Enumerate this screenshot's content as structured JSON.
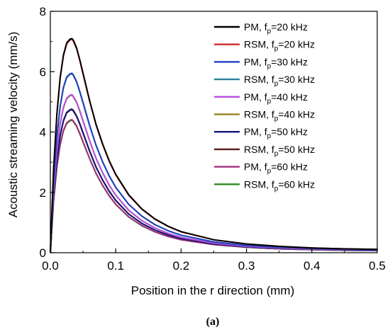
{
  "chart_data": {
    "type": "line",
    "xlabel": "Position in the r direction (mm)",
    "ylabel": "Acoustic streaming velocity (mm/s)",
    "caption": "(a)",
    "xlim": [
      0.0,
      0.5
    ],
    "ylim": [
      0,
      8
    ],
    "x_ticks": [
      "0.0",
      "0.1",
      "0.2",
      "0.3",
      "0.4",
      "0.5"
    ],
    "y_ticks": [
      "0",
      "2",
      "4",
      "6",
      "8"
    ],
    "grid": false,
    "legend_position": "top-right",
    "x": [
      0.0,
      0.005,
      0.01,
      0.015,
      0.02,
      0.025,
      0.03,
      0.033,
      0.035,
      0.04,
      0.045,
      0.05,
      0.06,
      0.07,
      0.08,
      0.09,
      0.1,
      0.12,
      0.14,
      0.16,
      0.18,
      0.2,
      0.25,
      0.3,
      0.35,
      0.4,
      0.45,
      0.5
    ],
    "series": [
      {
        "name": "PM, f",
        "sub": "p",
        "suffix": "=20 kHz",
        "color": "#000000",
        "values": [
          0.0,
          2.8,
          4.6,
          5.8,
          6.55,
          6.95,
          7.08,
          7.1,
          7.05,
          6.8,
          6.4,
          5.95,
          5.05,
          4.25,
          3.6,
          3.05,
          2.6,
          1.92,
          1.45,
          1.12,
          0.88,
          0.7,
          0.43,
          0.29,
          0.21,
          0.16,
          0.13,
          0.11
        ]
      },
      {
        "name": "RSM, f",
        "sub": "p",
        "suffix": "=20 kHz",
        "color": "#d62728",
        "values": [
          0.0,
          2.78,
          4.57,
          5.77,
          6.52,
          6.92,
          7.05,
          7.07,
          7.02,
          6.77,
          6.37,
          5.92,
          5.03,
          4.23,
          3.58,
          3.03,
          2.58,
          1.9,
          1.44,
          1.11,
          0.87,
          0.69,
          0.43,
          0.29,
          0.21,
          0.16,
          0.13,
          0.11
        ]
      },
      {
        "name": "PM, f",
        "sub": "p",
        "suffix": "=30 kHz",
        "color": "#1f3fbf",
        "values": [
          0.0,
          2.35,
          3.85,
          4.85,
          5.48,
          5.82,
          5.93,
          5.95,
          5.9,
          5.68,
          5.35,
          4.98,
          4.23,
          3.56,
          3.01,
          2.55,
          2.17,
          1.6,
          1.21,
          0.93,
          0.73,
          0.58,
          0.36,
          0.24,
          0.18,
          0.14,
          0.11,
          0.09
        ]
      },
      {
        "name": "RSM, f",
        "sub": "p",
        "suffix": "=30 kHz",
        "color": "#2a7f9e",
        "values": [
          0.0,
          2.33,
          3.83,
          4.83,
          5.46,
          5.8,
          5.91,
          5.93,
          5.88,
          5.66,
          5.33,
          4.96,
          4.21,
          3.55,
          3.0,
          2.54,
          2.16,
          1.6,
          1.21,
          0.93,
          0.73,
          0.58,
          0.36,
          0.24,
          0.18,
          0.14,
          0.11,
          0.09
        ]
      },
      {
        "name": "PM, f",
        "sub": "p",
        "suffix": "=40 kHz",
        "color": "#b84ee0",
        "values": [
          0.0,
          2.07,
          3.39,
          4.27,
          4.82,
          5.12,
          5.22,
          5.24,
          5.19,
          5.0,
          4.71,
          4.38,
          3.72,
          3.13,
          2.65,
          2.24,
          1.91,
          1.41,
          1.06,
          0.82,
          0.64,
          0.51,
          0.32,
          0.21,
          0.16,
          0.12,
          0.1,
          0.08
        ]
      },
      {
        "name": "RSM, f",
        "sub": "p",
        "suffix": "=40 kHz",
        "color": "#9a8a2a",
        "values": [
          0.0,
          2.05,
          3.37,
          4.25,
          4.8,
          5.1,
          5.2,
          5.22,
          5.17,
          4.98,
          4.69,
          4.36,
          3.71,
          3.12,
          2.64,
          2.23,
          1.9,
          1.4,
          1.06,
          0.82,
          0.64,
          0.51,
          0.32,
          0.21,
          0.16,
          0.12,
          0.1,
          0.08
        ]
      },
      {
        "name": "PM, f",
        "sub": "p",
        "suffix": "=50 kHz",
        "color": "#14147a",
        "values": [
          0.0,
          1.88,
          3.08,
          3.88,
          4.38,
          4.65,
          4.74,
          4.76,
          4.72,
          4.54,
          4.28,
          3.98,
          3.38,
          2.84,
          2.41,
          2.04,
          1.74,
          1.28,
          0.97,
          0.75,
          0.59,
          0.47,
          0.29,
          0.19,
          0.14,
          0.11,
          0.09,
          0.07
        ]
      },
      {
        "name": "RSM, f",
        "sub": "p",
        "suffix": "=50 kHz",
        "color": "#5a1a1a",
        "values": [
          0.0,
          1.87,
          3.06,
          3.86,
          4.36,
          4.63,
          4.72,
          4.74,
          4.7,
          4.52,
          4.26,
          3.96,
          3.37,
          2.83,
          2.4,
          2.03,
          1.73,
          1.28,
          0.97,
          0.75,
          0.59,
          0.47,
          0.29,
          0.19,
          0.14,
          0.11,
          0.09,
          0.07
        ]
      },
      {
        "name": "PM, f",
        "sub": "p",
        "suffix": "=60 kHz",
        "color": "#a0307a",
        "values": [
          0.0,
          1.74,
          2.85,
          3.59,
          4.05,
          4.3,
          4.39,
          4.41,
          4.37,
          4.21,
          3.96,
          3.68,
          3.13,
          2.63,
          2.23,
          1.89,
          1.61,
          1.19,
          0.9,
          0.69,
          0.54,
          0.43,
          0.27,
          0.18,
          0.13,
          0.1,
          0.08,
          0.07
        ]
      },
      {
        "name": "RSM, f",
        "sub": "p",
        "suffix": "=60 kHz",
        "color": "#2e8b1e",
        "values": [
          0.0,
          1.72,
          2.83,
          3.57,
          4.03,
          4.28,
          4.37,
          4.39,
          4.35,
          4.19,
          3.94,
          3.66,
          3.12,
          2.62,
          2.22,
          1.88,
          1.6,
          1.18,
          0.89,
          0.69,
          0.54,
          0.43,
          0.27,
          0.18,
          0.13,
          0.1,
          0.08,
          0.07
        ]
      }
    ]
  }
}
